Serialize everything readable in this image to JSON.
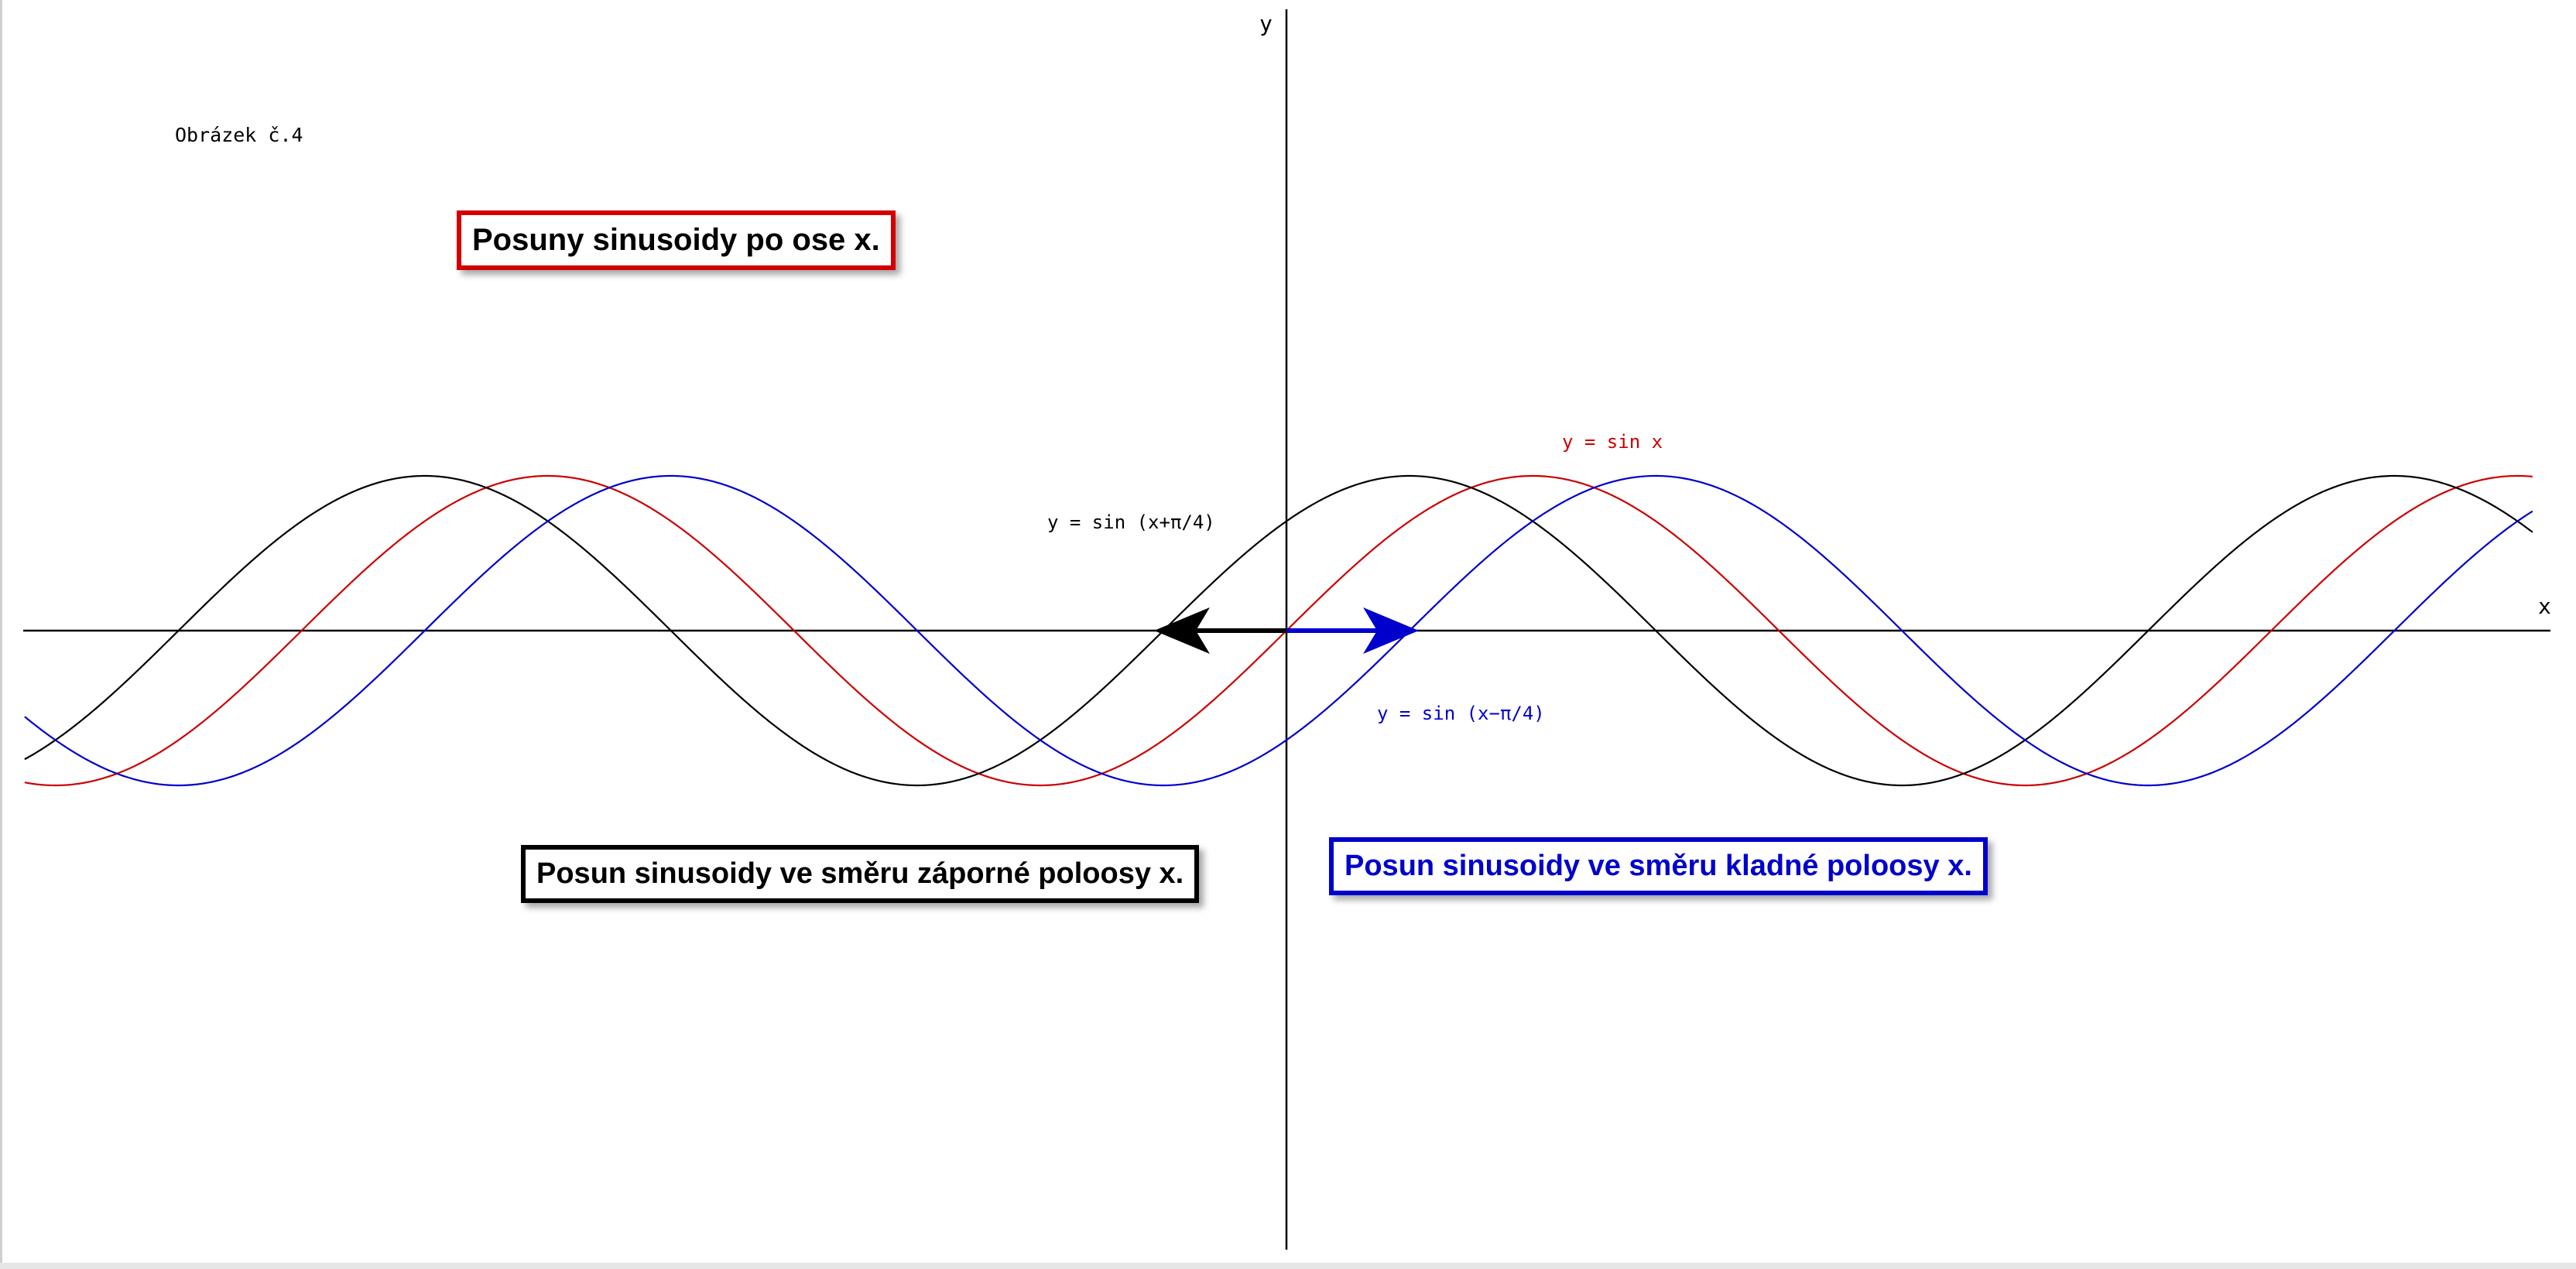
{
  "figure_label": "Obrázek č.4",
  "title_box": "Posuny sinusoidy po ose x.",
  "negative_shift_box": "Posun sinusoidy ve směru záporné poloosy x.",
  "positive_shift_box": "Posun sinusoidy ve směru kladné poloosy x.",
  "colors": {
    "title_border": "#d40000",
    "negative_border": "#000000",
    "positive_border": "#0000cc",
    "positive_text": "#0000cc"
  },
  "chart_data": {
    "type": "line",
    "title": "",
    "xlabel": "x",
    "ylabel": "y",
    "xlim": [
      -8.05,
      7.95
    ],
    "ylim": [
      -1.0,
      1.0
    ],
    "grid": false,
    "series": [
      {
        "name": "y = sin x",
        "expression": "sin(x)",
        "phase_shift": 0,
        "color": "#cc0000"
      },
      {
        "name": "y = sin (x+π/4)",
        "expression": "sin(x+pi/4)",
        "phase_shift": 0.7854,
        "color": "#000000"
      },
      {
        "name": "y = sin (x−π/4)",
        "expression": "sin(x-pi/4)",
        "phase_shift": -0.7854,
        "color": "#0000cc"
      }
    ],
    "annotations": [
      {
        "type": "arrow",
        "from_x": 0,
        "to_x": -0.7854,
        "y": 0,
        "color": "#000000"
      },
      {
        "type": "arrow",
        "from_x": 0,
        "to_x": 0.7854,
        "y": 0,
        "color": "#0000cc"
      }
    ]
  }
}
